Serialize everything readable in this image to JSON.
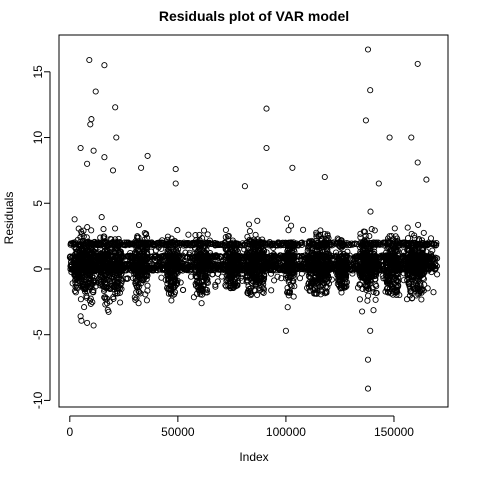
{
  "chart_data": {
    "type": "scatter",
    "title": "Residuals plot of VAR model",
    "xlabel": "Index",
    "ylabel": "Residuals",
    "xlim": [
      -5000,
      175000
    ],
    "ylim": [
      -10.5,
      17.8
    ],
    "x_ticks": [
      0,
      50000,
      100000,
      150000
    ],
    "x_tick_labels": [
      "0",
      "50000",
      "100000",
      "150000"
    ],
    "y_ticks": [
      -10,
      -5,
      0,
      5,
      10,
      15
    ],
    "y_tick_labels": [
      "-10",
      "-5",
      "0",
      "5",
      "10",
      "15"
    ],
    "grid": false,
    "legend": "none",
    "marker": "open-circle",
    "marker_color": "#000000",
    "series": [
      {
        "x_range": [
          0,
          170000
        ],
        "clusters": [
          {
            "x": [
              2000,
              12000
            ],
            "y_low": -4.3,
            "y_high": 6.0
          },
          {
            "x": [
              14000,
              24000
            ],
            "y_low": -3.5,
            "y_high": 5.0
          },
          {
            "x": [
              30000,
              36000
            ],
            "y_low": -2.8,
            "y_high": 4.5
          },
          {
            "x": [
              45000,
              50000
            ],
            "y_low": -2.3,
            "y_high": 3.5
          },
          {
            "x": [
              58000,
              64000
            ],
            "y_low": -2.0,
            "y_high": 3.0
          },
          {
            "x": [
              72000,
              78000
            ],
            "y_low": -1.5,
            "y_high": 3.0
          },
          {
            "x": [
              82000,
              90000
            ],
            "y_low": -2.0,
            "y_high": 4.0
          },
          {
            "x": [
              100000,
              104000
            ],
            "y_low": -4.8,
            "y_high": 4.0
          },
          {
            "x": [
              110000,
              120000
            ],
            "y_low": -2.0,
            "y_high": 4.0
          },
          {
            "x": [
              124000,
              128000
            ],
            "y_low": -1.5,
            "y_high": 3.0
          },
          {
            "x": [
              134000,
              142000
            ],
            "y_low": -4.5,
            "y_high": 5.0
          },
          {
            "x": [
              146000,
              152000
            ],
            "y_low": -2.0,
            "y_high": 4.0
          },
          {
            "x": [
              156000,
              164000
            ],
            "y_low": -2.5,
            "y_high": 4.0
          }
        ],
        "bands": [
          0.0,
          0.3,
          0.9,
          1.9
        ],
        "outliers": [
          {
            "x": 9000,
            "y": 15.9
          },
          {
            "x": 12000,
            "y": 13.5
          },
          {
            "x": 16000,
            "y": 15.5
          },
          {
            "x": 21000,
            "y": 12.3
          },
          {
            "x": 10000,
            "y": 11.4
          },
          {
            "x": 9500,
            "y": 11.0
          },
          {
            "x": 21500,
            "y": 10.0
          },
          {
            "x": 5000,
            "y": 9.2
          },
          {
            "x": 11000,
            "y": 9.0
          },
          {
            "x": 16000,
            "y": 8.5
          },
          {
            "x": 8000,
            "y": 8.0
          },
          {
            "x": 20000,
            "y": 7.5
          },
          {
            "x": 36000,
            "y": 8.6
          },
          {
            "x": 33000,
            "y": 7.7
          },
          {
            "x": 49000,
            "y": 7.6
          },
          {
            "x": 49000,
            "y": 6.5
          },
          {
            "x": 81000,
            "y": 6.3
          },
          {
            "x": 91000,
            "y": 12.2
          },
          {
            "x": 91000,
            "y": 9.2
          },
          {
            "x": 103000,
            "y": 7.7
          },
          {
            "x": 118000,
            "y": 7.0
          },
          {
            "x": 137000,
            "y": 11.3
          },
          {
            "x": 138000,
            "y": 16.7
          },
          {
            "x": 139000,
            "y": 13.6
          },
          {
            "x": 148000,
            "y": 10.0
          },
          {
            "x": 158000,
            "y": 10.0
          },
          {
            "x": 161000,
            "y": 15.6
          },
          {
            "x": 161000,
            "y": 8.1
          },
          {
            "x": 165000,
            "y": 6.8
          },
          {
            "x": 143000,
            "y": 6.5
          },
          {
            "x": 100000,
            "y": -4.7
          },
          {
            "x": 138000,
            "y": -6.9
          },
          {
            "x": 138000,
            "y": -9.1
          },
          {
            "x": 5000,
            "y": -3.6
          },
          {
            "x": 8000,
            "y": -4.1
          },
          {
            "x": 11000,
            "y": -4.3
          },
          {
            "x": 139000,
            "y": -4.7
          },
          {
            "x": 47000,
            "y": -2.4
          },
          {
            "x": 61000,
            "y": -2.6
          }
        ]
      }
    ]
  }
}
